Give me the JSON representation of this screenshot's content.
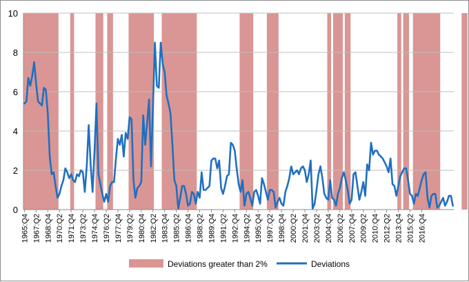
{
  "chart_data": {
    "type": "line",
    "title": "",
    "xlabel": "",
    "ylabel": "",
    "ylim": [
      0,
      10
    ],
    "yticks": [
      "0",
      "2",
      "4",
      "6",
      "8",
      "10"
    ],
    "grid": "horizontal",
    "legend_position": "bottom",
    "colors": {
      "shading": "#d99694",
      "line": "#1f6fc1",
      "grid": "#bfbfbf"
    },
    "x_start": "1965:Q4",
    "x_tick_labels": [
      "1965:Q4",
      "1967:Q2",
      "1968:Q4",
      "1970:Q2",
      "1971:Q4",
      "1973:Q2",
      "1974:Q4",
      "1976:Q2",
      "1977:Q4",
      "1979:Q2",
      "1980:Q4",
      "1982:Q2",
      "1983:Q4",
      "1985:Q2",
      "1986:Q4",
      "1988:Q2",
      "1989:Q4",
      "1991:Q2",
      "1992:Q4",
      "1994:Q2",
      "1995:Q4",
      "1997:Q2",
      "1998:Q4",
      "2000:Q2",
      "2001:Q4",
      "2003:Q2",
      "2004:Q4",
      "2006:Q2",
      "2007:Q4",
      "2009:Q2",
      "2010:Q4",
      "2012:Q2",
      "2013:Q4",
      "2015:Q2",
      "2016:Q4"
    ],
    "series": [
      {
        "name": "Deviations",
        "values": [
          5.4,
          5.5,
          6.7,
          6.3,
          6.8,
          7.5,
          6.4,
          5.5,
          5.4,
          5.3,
          6.2,
          6.1,
          4.9,
          2.7,
          1.8,
          1.9,
          1.2,
          0.6,
          0.8,
          1.2,
          1.5,
          2.1,
          1.9,
          1.6,
          1.8,
          1.5,
          1.4,
          1.8,
          1.7,
          2.0,
          1.9,
          0.9,
          2.2,
          4.3,
          2.3,
          0.9,
          3.0,
          5.4,
          1.8,
          1.3,
          0.8,
          0.4,
          0.8,
          0.4,
          1.2,
          1.4,
          1.4,
          2.6,
          3.6,
          3.3,
          3.8,
          2.7,
          3.9,
          3.6,
          4.7,
          4.6,
          1.5,
          0.6,
          1.1,
          1.2,
          1.4,
          4.8,
          3.3,
          4.4,
          5.6,
          2.2,
          5.2,
          8.5,
          6.3,
          6.2,
          8.5,
          7.4,
          7.0,
          5.8,
          5.4,
          4.9,
          3.3,
          1.5,
          1.2,
          0.05,
          0.6,
          1.2,
          1.2,
          0.8,
          0.2,
          0.3,
          0.9,
          0.8,
          0.3,
          0.9,
          0.6,
          1.9,
          1.0,
          1.0,
          1.1,
          1.2,
          2.5,
          2.6,
          2.6,
          2.1,
          2.5,
          1.1,
          0.8,
          1.2,
          1.7,
          1.8,
          3.4,
          3.3,
          3.0,
          2.1,
          1.3,
          0.9,
          1.5,
          0.2,
          0.8,
          0.9,
          0.6,
          0.2,
          0.9,
          1.0,
          0.7,
          0.3,
          1.6,
          1.3,
          0.9,
          0.5,
          1.0,
          1.0,
          0.9,
          0.1,
          0.4,
          0.6,
          0.3,
          0.2,
          0.9,
          1.2,
          1.6,
          2.2,
          1.8,
          1.9,
          2.0,
          1.8,
          2.1,
          2.2,
          2.0,
          1.4,
          1.8,
          2.5,
          0.05,
          0.3,
          1.0,
          1.8,
          2.2,
          1.6,
          0.8,
          0.6,
          0.5,
          1.5,
          0.6,
          0.5,
          0.2,
          0.8,
          1.1,
          1.6,
          1.9,
          1.5,
          1.0,
          0.3,
          0.5,
          1.8,
          1.9,
          1.2,
          0.5,
          0.9,
          1.4,
          0.7,
          2.3,
          2.0,
          3.4,
          2.8,
          3.0,
          3.0,
          2.8,
          2.7,
          2.6,
          2.4,
          2.2,
          1.9,
          2.6,
          1.3,
          1.2,
          0.7,
          1.2,
          1.7,
          1.9,
          2.1,
          2.1,
          1.5,
          0.8,
          0.7,
          0.3,
          0.8,
          0.7,
          1.1,
          1.5,
          1.8,
          1.9,
          0.6,
          0.1,
          0.7,
          0.8,
          0.8,
          0.1,
          0.2,
          0.4,
          0.6,
          0.2,
          0.4,
          0.7,
          0.7,
          0.2
        ]
      }
    ],
    "shaded_regions": {
      "name": "Deviations greater than 2%",
      "ranges": [
        [
          0,
          17
        ],
        [
          24,
          25
        ],
        [
          37,
          40
        ],
        [
          43,
          45
        ],
        [
          54,
          66
        ],
        [
          71,
          88
        ],
        [
          111,
          117
        ],
        [
          125,
          130
        ],
        [
          156,
          157
        ],
        [
          159,
          163
        ],
        [
          165,
          167
        ],
        [
          192,
          193
        ],
        [
          195,
          197
        ],
        [
          200,
          213
        ],
        [
          225,
          227
        ]
      ]
    },
    "legend": [
      "Deviations greater than 2%",
      "Deviations"
    ]
  }
}
